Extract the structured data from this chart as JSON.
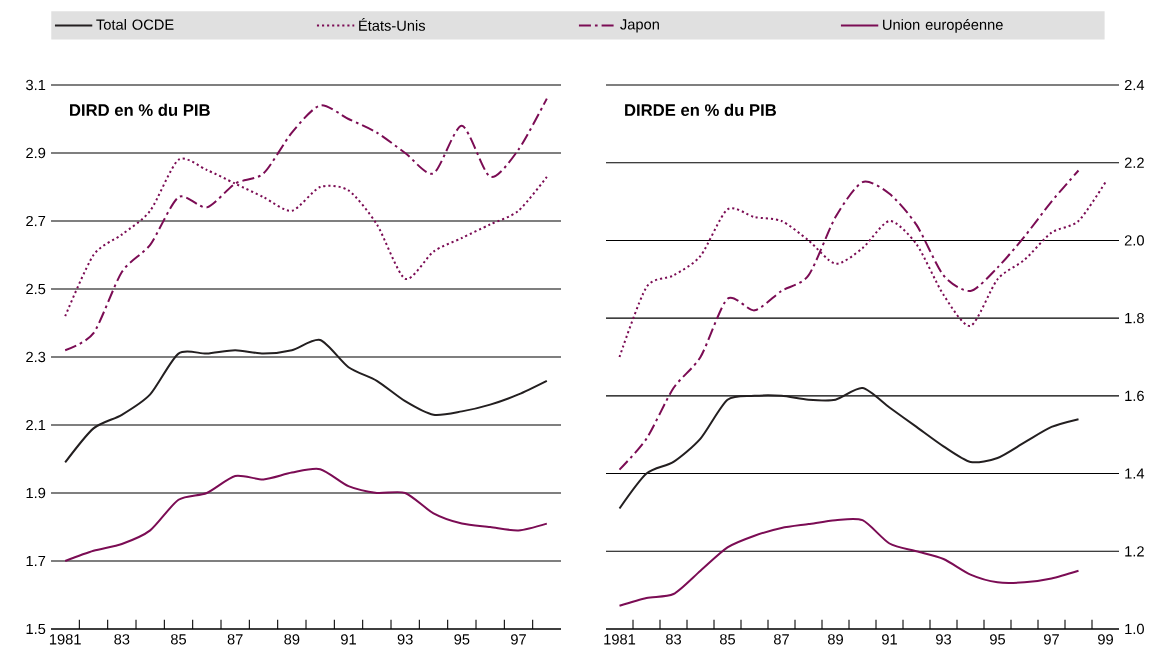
{
  "chart_data": [
    {
      "type": "line",
      "title": "DIRD en % du PIB",
      "legend": "top",
      "grid": "y",
      "x": [
        1981,
        1982,
        1983,
        1984,
        1985,
        1986,
        1987,
        1988,
        1989,
        1990,
        1991,
        1992,
        1993,
        1994,
        1995,
        1996,
        1997,
        1998
      ],
      "xlim": [
        1980.5,
        1998.5
      ],
      "xticks": [
        1981,
        {
          "value": 1983,
          "label": "83"
        },
        {
          "value": 1985,
          "label": "85"
        },
        {
          "value": 1987,
          "label": "87"
        },
        {
          "value": 1989,
          "label": "89"
        },
        {
          "value": 1991,
          "label": "91"
        },
        {
          "value": 1993,
          "label": "93"
        },
        {
          "value": 1995,
          "label": "95"
        },
        {
          "value": 1997,
          "label": "97"
        },
        {
          "value": 1981.5,
          "label": null
        },
        {
          "value": 1982.5,
          "label": null
        },
        {
          "value": 1983.5,
          "label": null
        },
        {
          "value": 1984.5,
          "label": null
        },
        {
          "value": 1985.5,
          "label": null
        },
        {
          "value": 1986.5,
          "label": null
        },
        {
          "value": 1987.5,
          "label": null
        },
        {
          "value": 1988.5,
          "label": null
        },
        {
          "value": 1989.5,
          "label": null
        },
        {
          "value": 1990.5,
          "label": null
        },
        {
          "value": 1991.5,
          "label": null
        },
        {
          "value": 1992.5,
          "label": null
        },
        {
          "value": 1993.5,
          "label": null
        },
        {
          "value": 1994.5,
          "label": null
        },
        {
          "value": 1995.5,
          "label": null
        },
        {
          "value": 1996.5,
          "label": null
        },
        {
          "value": 1997.5,
          "label": null
        }
      ],
      "ylim": [
        1.5,
        3.1
      ],
      "yticks": [
        1.5,
        1.7,
        1.9,
        2.1,
        2.3,
        2.5,
        2.7,
        2.9,
        3.1
      ],
      "series": [
        {
          "name": "Total OCDE",
          "color": "#231f20",
          "line_style": "solid",
          "values": [
            1.99,
            2.09,
            2.13,
            2.19,
            2.31,
            2.31,
            2.32,
            2.31,
            2.32,
            2.35,
            2.27,
            2.23,
            2.17,
            2.13,
            2.14,
            2.16,
            2.19,
            2.23
          ]
        },
        {
          "name": "États-Unis",
          "color": "#7b0c54",
          "line_style": "dotted",
          "values": [
            2.42,
            2.6,
            2.66,
            2.73,
            2.88,
            2.85,
            2.81,
            2.77,
            2.73,
            2.8,
            2.79,
            2.69,
            2.53,
            2.61,
            2.65,
            2.69,
            2.73,
            2.83
          ]
        },
        {
          "name": "Japon",
          "color": "#7b0c54",
          "line_style": "dashdot",
          "values": [
            2.32,
            2.37,
            2.55,
            2.63,
            2.77,
            2.74,
            2.81,
            2.84,
            2.96,
            3.04,
            3.0,
            2.96,
            2.9,
            2.84,
            2.98,
            2.83,
            2.91,
            3.06
          ]
        },
        {
          "name": "Union européenne",
          "color": "#7b0c54",
          "line_style": "solid",
          "values": [
            1.7,
            1.73,
            1.75,
            1.79,
            1.88,
            1.9,
            1.95,
            1.94,
            1.96,
            1.97,
            1.92,
            1.9,
            1.9,
            1.84,
            1.81,
            1.8,
            1.79,
            1.81
          ]
        }
      ]
    },
    {
      "type": "line",
      "title": "DIRDE en % du PIB",
      "grid": "y",
      "x": [
        1981,
        1982,
        1983,
        1984,
        1985,
        1986,
        1987,
        1988,
        1989,
        1990,
        1991,
        1992,
        1993,
        1994,
        1995,
        1996,
        1997,
        1998,
        1999
      ],
      "xlim": [
        1980.5,
        1999.5
      ],
      "xticks": [
        1981,
        {
          "value": 1983,
          "label": "83"
        },
        {
          "value": 1985,
          "label": "85"
        },
        {
          "value": 1987,
          "label": "87"
        },
        {
          "value": 1989,
          "label": "89"
        },
        {
          "value": 1991,
          "label": "91"
        },
        {
          "value": 1993,
          "label": "93"
        },
        {
          "value": 1995,
          "label": "95"
        },
        {
          "value": 1997,
          "label": "97"
        },
        {
          "value": 1999,
          "label": "99"
        },
        {
          "value": 1981.5,
          "label": null
        },
        {
          "value": 1982.5,
          "label": null
        },
        {
          "value": 1983.5,
          "label": null
        },
        {
          "value": 1984.5,
          "label": null
        },
        {
          "value": 1985.5,
          "label": null
        },
        {
          "value": 1986.5,
          "label": null
        },
        {
          "value": 1987.5,
          "label": null
        },
        {
          "value": 1988.5,
          "label": null
        },
        {
          "value": 1989.5,
          "label": null
        },
        {
          "value": 1990.5,
          "label": null
        },
        {
          "value": 1991.5,
          "label": null
        },
        {
          "value": 1992.5,
          "label": null
        },
        {
          "value": 1993.5,
          "label": null
        },
        {
          "value": 1994.5,
          "label": null
        },
        {
          "value": 1995.5,
          "label": null
        },
        {
          "value": 1996.5,
          "label": null
        },
        {
          "value": 1997.5,
          "label": null
        },
        {
          "value": 1998.5,
          "label": null
        }
      ],
      "ylim": [
        1.0,
        2.4
      ],
      "yticks": [
        {
          "value": 1.0,
          "label": "1.0"
        },
        1.2,
        1.4,
        1.6,
        1.8,
        {
          "value": 2.0,
          "label": "2.0"
        },
        2.2,
        2.4
      ],
      "series": [
        {
          "color": "#231f20",
          "line_style": "solid",
          "values": [
            1.31,
            1.4,
            1.43,
            1.49,
            1.59,
            1.6,
            1.6,
            1.59,
            1.59,
            1.62,
            1.57,
            1.52,
            1.47,
            1.43,
            1.44,
            1.48,
            1.52,
            1.54,
            null
          ]
        },
        {
          "color": "#7b0c54",
          "line_style": "dotted",
          "values": [
            1.7,
            1.88,
            1.91,
            1.96,
            2.08,
            2.06,
            2.05,
            2.0,
            1.94,
            1.98,
            2.05,
            1.99,
            1.86,
            1.78,
            1.9,
            1.95,
            2.02,
            2.05,
            2.15
          ]
        },
        {
          "color": "#7b0c54",
          "line_style": "dashdot",
          "values": [
            1.41,
            1.49,
            1.62,
            1.7,
            1.85,
            1.82,
            1.87,
            1.91,
            2.06,
            2.15,
            2.12,
            2.04,
            1.91,
            1.87,
            1.93,
            2.01,
            2.1,
            2.18,
            null
          ]
        },
        {
          "color": "#7b0c54",
          "line_style": "solid",
          "values": [
            1.06,
            1.08,
            1.09,
            1.15,
            1.21,
            1.24,
            1.26,
            1.27,
            1.28,
            1.28,
            1.22,
            1.2,
            1.18,
            1.14,
            1.12,
            1.12,
            1.13,
            1.15,
            null
          ]
        }
      ]
    }
  ]
}
